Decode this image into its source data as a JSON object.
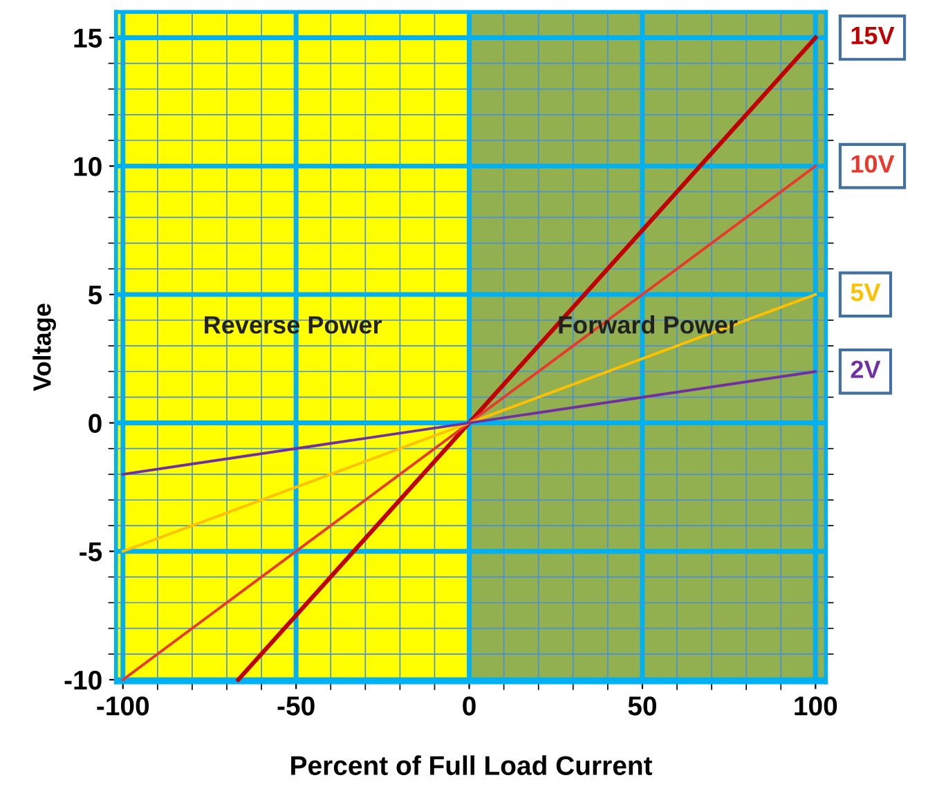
{
  "chart_data": {
    "type": "line",
    "xlabel": "Percent of Full Load Current",
    "ylabel": "Voltage",
    "xlim": [
      -102,
      103
    ],
    "ylim": [
      -10.1,
      16
    ],
    "xticks": [
      -100,
      {
        "value": -90,
        "label": null
      },
      {
        "value": -80,
        "label": null
      },
      {
        "value": -70,
        "label": null
      },
      {
        "value": -60,
        "label": null
      },
      -50,
      {
        "value": -40,
        "label": null
      },
      {
        "value": -30,
        "label": null
      },
      {
        "value": -20,
        "label": null
      },
      {
        "value": -10,
        "label": null
      },
      0,
      {
        "value": 10,
        "label": null
      },
      {
        "value": 20,
        "label": null
      },
      {
        "value": 30,
        "label": null
      },
      {
        "value": 40,
        "label": null
      },
      50,
      {
        "value": 60,
        "label": null
      },
      {
        "value": 70,
        "label": null
      },
      {
        "value": 80,
        "label": null
      },
      {
        "value": 90,
        "label": null
      },
      100
    ],
    "yticks": [
      -10,
      {
        "value": -9,
        "label": null
      },
      {
        "value": -8,
        "label": null
      },
      {
        "value": -7,
        "label": null
      },
      {
        "value": -6,
        "label": null
      },
      -5,
      {
        "value": -4,
        "label": null
      },
      {
        "value": -3,
        "label": null
      },
      {
        "value": -2,
        "label": null
      },
      {
        "value": -1,
        "label": null
      },
      0,
      {
        "value": 1,
        "label": null
      },
      {
        "value": 2,
        "label": null
      },
      {
        "value": 3,
        "label": null
      },
      {
        "value": 4,
        "label": null
      },
      5,
      {
        "value": 6,
        "label": null
      },
      {
        "value": 7,
        "label": null
      },
      {
        "value": 8,
        "label": null
      },
      {
        "value": 9,
        "label": null
      },
      10,
      {
        "value": 11,
        "label": null
      },
      {
        "value": 12,
        "label": null
      },
      {
        "value": 13,
        "label": null
      },
      {
        "value": 14,
        "label": null
      },
      15
    ],
    "grid": true,
    "legend": false,
    "series": [
      {
        "name": "15V",
        "color": "#c00000",
        "x": [
          -66.7,
          100
        ],
        "values": [
          -10,
          15
        ]
      },
      {
        "name": "10V",
        "color": "#e8392c",
        "x": [
          -100,
          100
        ],
        "values": [
          -10,
          10
        ]
      },
      {
        "name": "5V",
        "color": "#ffc000",
        "x": [
          -100,
          100
        ],
        "values": [
          -5,
          5
        ]
      },
      {
        "name": "2V",
        "color": "#7030a0",
        "x": [
          -100,
          100
        ],
        "values": [
          -2,
          2
        ]
      }
    ],
    "bands": [
      {
        "axis": "x",
        "from": -102,
        "to": 0,
        "label": "Reverse Power",
        "color": "#ffff00"
      },
      {
        "axis": "x",
        "from": 0,
        "to": 103,
        "label": "Forward Power",
        "color": "#92b050"
      }
    ]
  }
}
